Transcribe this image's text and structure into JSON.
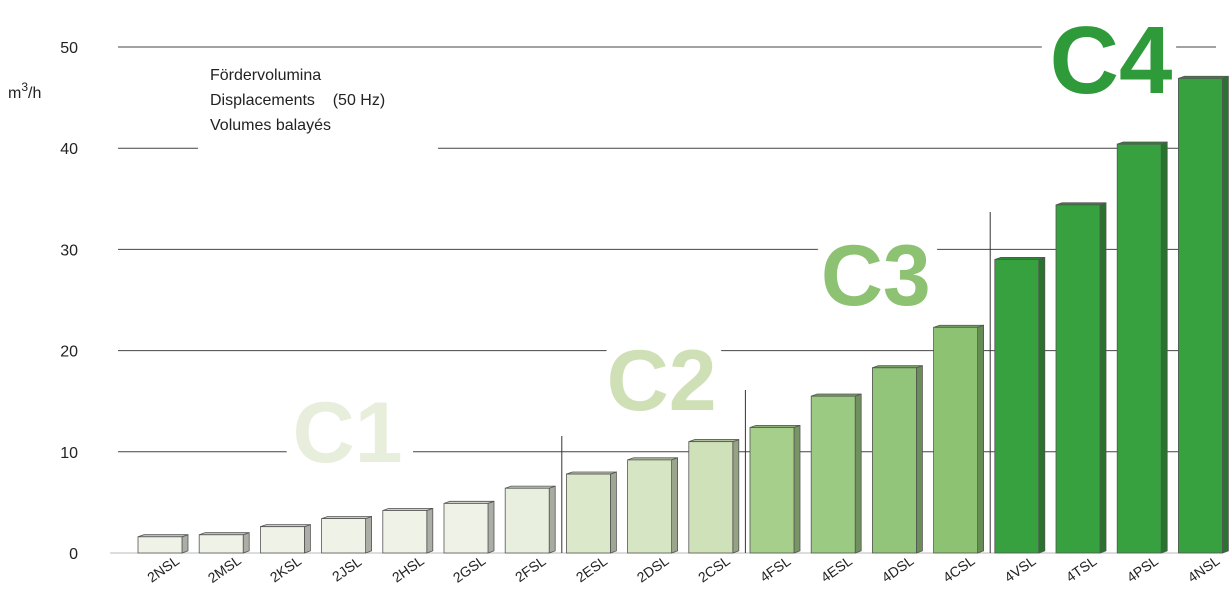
{
  "chart_data": {
    "type": "bar",
    "unit_label": "m3/h",
    "ylim": [
      0,
      50
    ],
    "yticks": [
      0,
      10,
      20,
      30,
      40,
      50
    ],
    "grid": true,
    "legend_lines": [
      "Fördervolumina",
      "Displacements    (50 Hz)",
      "Volumes balayés"
    ],
    "categories": [
      "2NSL",
      "2MSL",
      "2KSL",
      "2JSL",
      "2HSL",
      "2GSL",
      "2FSL",
      "2ESL",
      "2DSL",
      "2CSL",
      "4FSL",
      "4ESL",
      "4DSL",
      "4CSL",
      "4VSL",
      "4TSL",
      "4PSL",
      "4NSL"
    ],
    "values": [
      1.6,
      1.8,
      2.6,
      3.4,
      4.2,
      4.9,
      6.4,
      7.8,
      9.2,
      11.0,
      12.4,
      15.5,
      18.3,
      22.3,
      29.0,
      34.4,
      40.4,
      46.9
    ],
    "classes": [
      {
        "name": "C1",
        "color": "#e7eedc",
        "first": 0,
        "last": 6
      },
      {
        "name": "C2",
        "color": "#cfe0b6",
        "first": 7,
        "last": 9
      },
      {
        "name": "C3",
        "color": "#8cc272",
        "first": 10,
        "last": 13
      },
      {
        "name": "C4",
        "color": "#2f9a3a",
        "first": 14,
        "last": 17
      }
    ],
    "bar_colors": [
      "#eef2e7",
      "#eef2e7",
      "#eef2e7",
      "#eef2e7",
      "#eef2e7",
      "#eef2e7",
      "#e8efde",
      "#dce8ca",
      "#d6e5c3",
      "#cfe1b8",
      "#a6cf8c",
      "#9bca82",
      "#92c57a",
      "#8cc272",
      "#37a03f",
      "#37a03f",
      "#37a03f",
      "#37a03f"
    ]
  }
}
